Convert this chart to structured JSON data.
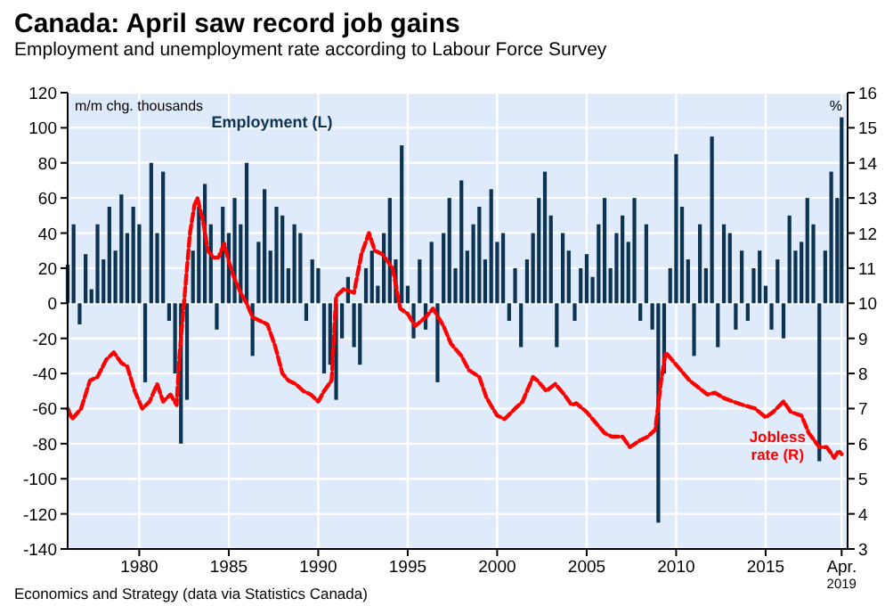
{
  "chart_data": {
    "type": "bar",
    "title": "Canada: April saw record job gains",
    "subtitle": "Employment and unemployment rate according to Labour Force Survey",
    "ylabel": "m/m chg. thousands",
    "y2label": "%",
    "xlim": [
      "1976-01",
      "2019-08"
    ],
    "xticks": [
      {
        "value": "1980-01",
        "label": "1980"
      },
      {
        "value": "1985-01",
        "label": "1985"
      },
      {
        "value": "1990-01",
        "label": "1990"
      },
      {
        "value": "1995-01",
        "label": "1995"
      },
      {
        "value": "2000-01",
        "label": "2000"
      },
      {
        "value": "2005-01",
        "label": "2005"
      },
      {
        "value": "2010-01",
        "label": "2010"
      },
      {
        "value": "2015-01",
        "label": "2015"
      },
      {
        "value": "2019-04",
        "label": "Apr. 2019"
      }
    ],
    "ylim": [
      -140,
      120
    ],
    "yticks": [
      -140,
      -120,
      -100,
      -80,
      -60,
      -40,
      -20,
      0,
      20,
      40,
      60,
      80,
      100,
      120
    ],
    "y2lim": [
      3,
      16
    ],
    "y2ticks": [
      3,
      4,
      5,
      6,
      7,
      8,
      9,
      10,
      11,
      12,
      13,
      14,
      15,
      16
    ],
    "grid": true,
    "annotations": [
      "Economics and Strategy (data via Statistics Canada)"
    ],
    "series": [
      {
        "name": "Employment (L)",
        "color": "#0d3352",
        "x": [
          "1976-01",
          "1976-05",
          "1976-09",
          "1977-01",
          "1977-05",
          "1977-09",
          "1978-01",
          "1978-05",
          "1978-09",
          "1979-01",
          "1979-05",
          "1979-09",
          "1980-01",
          "1980-05",
          "1980-09",
          "1981-01",
          "1981-05",
          "1981-09",
          "1982-01",
          "1982-05",
          "1982-09",
          "1983-01",
          "1983-05",
          "1983-09",
          "1984-01",
          "1984-05",
          "1984-09",
          "1985-01",
          "1985-05",
          "1985-09",
          "1986-01",
          "1986-05",
          "1986-09",
          "1987-01",
          "1987-05",
          "1987-09",
          "1988-01",
          "1988-05",
          "1988-09",
          "1989-01",
          "1989-05",
          "1989-09",
          "1990-01",
          "1990-05",
          "1990-09",
          "1991-01",
          "1991-05",
          "1991-09",
          "1992-01",
          "1992-05",
          "1992-09",
          "1993-01",
          "1993-05",
          "1993-09",
          "1994-01",
          "1994-05",
          "1994-09",
          "1995-01",
          "1995-05",
          "1995-09",
          "1996-01",
          "1996-05",
          "1996-09",
          "1997-01",
          "1997-05",
          "1997-09",
          "1998-01",
          "1998-05",
          "1998-09",
          "1999-01",
          "1999-05",
          "1999-09",
          "2000-01",
          "2000-05",
          "2000-09",
          "2001-01",
          "2001-05",
          "2001-09",
          "2002-01",
          "2002-05",
          "2002-09",
          "2003-01",
          "2003-05",
          "2003-09",
          "2004-01",
          "2004-05",
          "2004-09",
          "2005-01",
          "2005-05",
          "2005-09",
          "2006-01",
          "2006-05",
          "2006-09",
          "2007-01",
          "2007-05",
          "2007-09",
          "2008-01",
          "2008-05",
          "2008-09",
          "2009-01",
          "2009-05",
          "2009-09",
          "2010-01",
          "2010-05",
          "2010-09",
          "2011-01",
          "2011-05",
          "2011-09",
          "2012-01",
          "2012-05",
          "2012-09",
          "2013-01",
          "2013-05",
          "2013-09",
          "2014-01",
          "2014-05",
          "2014-09",
          "2015-01",
          "2015-05",
          "2015-09",
          "2016-01",
          "2016-05",
          "2016-09",
          "2017-01",
          "2017-05",
          "2017-09",
          "2018-01",
          "2018-05",
          "2018-09",
          "2019-01",
          "2019-04"
        ],
        "values": [
          22,
          45,
          -12,
          28,
          8,
          45,
          25,
          55,
          30,
          62,
          40,
          55,
          45,
          -45,
          80,
          40,
          75,
          -10,
          -40,
          -80,
          -55,
          30,
          55,
          68,
          45,
          -15,
          55,
          40,
          60,
          45,
          80,
          -30,
          35,
          65,
          30,
          55,
          50,
          20,
          45,
          40,
          -10,
          25,
          20,
          -40,
          -35,
          -55,
          -20,
          15,
          -25,
          -35,
          20,
          30,
          10,
          40,
          60,
          25,
          90,
          10,
          -20,
          25,
          -15,
          35,
          -45,
          40,
          60,
          20,
          70,
          30,
          45,
          55,
          25,
          65,
          35,
          40,
          -10,
          20,
          -25,
          25,
          40,
          60,
          75,
          50,
          -25,
          40,
          30,
          -10,
          20,
          28,
          15,
          45,
          60,
          20,
          40,
          50,
          35,
          60,
          -10,
          45,
          -15,
          -125,
          -40,
          20,
          85,
          55,
          25,
          -30,
          45,
          20,
          95,
          -25,
          45,
          40,
          -15,
          30,
          -10,
          20,
          30,
          10,
          -15,
          25,
          -20,
          50,
          30,
          35,
          60,
          45,
          -90,
          30,
          75,
          60,
          106
        ]
      },
      {
        "name": "Jobless rate (R)",
        "type": "line",
        "axis": "y2",
        "color": "#ff0000",
        "line_style": "dashed",
        "x": [
          "1976-01",
          "1976-04",
          "1976-10",
          "1977-04",
          "1977-09",
          "1978-03",
          "1978-08",
          "1979-01",
          "1979-05",
          "1979-10",
          "1980-03",
          "1980-08",
          "1981-01",
          "1981-05",
          "1981-10",
          "1982-02",
          "1982-04",
          "1982-08",
          "1982-11",
          "1983-02",
          "1983-04",
          "1983-08",
          "1983-11",
          "1984-03",
          "1984-06",
          "1984-10",
          "1985-01",
          "1985-04",
          "1985-09",
          "1986-01",
          "1986-05",
          "1986-10",
          "1987-03",
          "1987-08",
          "1988-01",
          "1988-05",
          "1988-10",
          "1989-03",
          "1989-08",
          "1990-01",
          "1990-05",
          "1990-10",
          "1991-01",
          "1991-06",
          "1992-01",
          "1992-06",
          "1992-11",
          "1993-03",
          "1993-08",
          "1994-03",
          "1994-08",
          "1995-01",
          "1995-06",
          "1996-01",
          "1996-06",
          "1997-01",
          "1997-06",
          "1998-01",
          "1998-06",
          "1999-01",
          "1999-06",
          "2000-01",
          "2000-06",
          "2001-01",
          "2001-06",
          "2002-01",
          "2002-04",
          "2002-10",
          "2003-04",
          "2003-10",
          "2004-03",
          "2004-06",
          "2005-01",
          "2006-01",
          "2006-06",
          "2007-01",
          "2007-06",
          "2008-01",
          "2008-06",
          "2008-11",
          "2009-03",
          "2009-06",
          "2009-10",
          "2010-04",
          "2010-10",
          "2011-04",
          "2011-10",
          "2012-03",
          "2012-09",
          "2013-03",
          "2013-10",
          "2014-06",
          "2015-01",
          "2015-06",
          "2016-01",
          "2016-06",
          "2017-01",
          "2017-06",
          "2018-01",
          "2018-06",
          "2018-11",
          "2019-02",
          "2019-04"
        ],
        "values": [
          7.0,
          6.7,
          7.0,
          7.8,
          7.9,
          8.4,
          8.6,
          8.3,
          8.2,
          7.5,
          7.0,
          7.2,
          7.7,
          7.2,
          7.4,
          7.1,
          8.5,
          10.5,
          12.0,
          12.8,
          13.0,
          12.3,
          11.5,
          11.3,
          11.3,
          11.7,
          11.2,
          10.8,
          10.3,
          10.0,
          9.6,
          9.5,
          9.4,
          8.8,
          8.0,
          7.8,
          7.7,
          7.5,
          7.4,
          7.2,
          7.5,
          7.8,
          10.2,
          10.4,
          10.3,
          11.4,
          12.0,
          11.5,
          11.4,
          11.0,
          9.85,
          9.7,
          9.35,
          9.6,
          9.85,
          9.35,
          8.85,
          8.5,
          8.1,
          7.9,
          7.3,
          6.8,
          6.7,
          7.0,
          7.2,
          7.9,
          7.8,
          7.5,
          7.7,
          7.4,
          7.1,
          7.15,
          6.9,
          6.3,
          6.2,
          6.2,
          5.9,
          6.1,
          6.2,
          6.4,
          7.8,
          8.6,
          8.4,
          8.1,
          7.8,
          7.6,
          7.4,
          7.45,
          7.3,
          7.2,
          7.1,
          7.0,
          6.75,
          6.9,
          7.2,
          6.9,
          6.8,
          6.3,
          5.9,
          5.9,
          5.6,
          5.8,
          5.7
        ]
      }
    ]
  }
}
